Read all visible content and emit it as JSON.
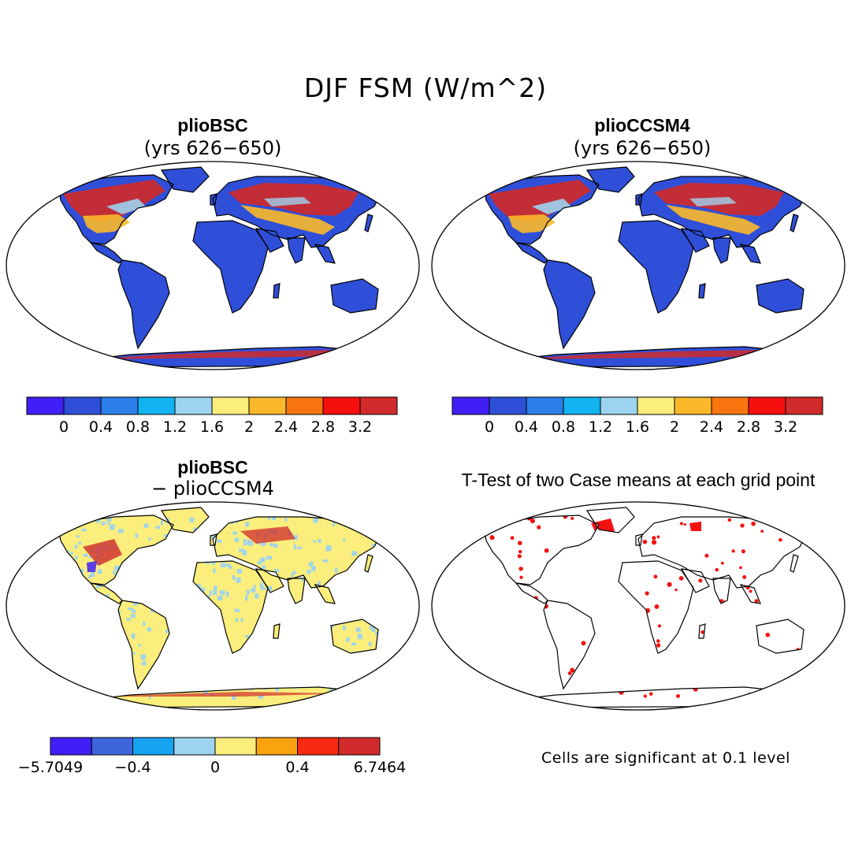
{
  "figure": {
    "title": "DJF FSM (W/m^2)",
    "significance_note": "Cells are significant at 0.1 level"
  },
  "panels": [
    {
      "id": "pliobsc",
      "title": "plioBSC",
      "subtitle": "(yrs 626−650)"
    },
    {
      "id": "pliocssm4",
      "title": "plioCCSM4",
      "subtitle": "(yrs 626−650)"
    },
    {
      "id": "difference",
      "title": "plioBSC",
      "subtitle": "− plioCCSM4"
    },
    {
      "id": "ttest",
      "title": "T-Test of two Case means at each grid point",
      "subtitle": ""
    }
  ],
  "colorbars": {
    "absolute": {
      "colors": [
        "#3f1ff5",
        "#2f4fd8",
        "#2a7fe8",
        "#12b3f0",
        "#9dd3ee",
        "#fbee7c",
        "#fbb82a",
        "#f87510",
        "#f50f0f",
        "#d02a2a"
      ],
      "tick_labels": [
        "0",
        "0.4",
        "0.8",
        "1.2",
        "1.6",
        "2",
        "2.4",
        "2.8",
        "3.2"
      ]
    },
    "difference": {
      "colors": [
        "#3f1ff5",
        "#3f65dc",
        "#16a3f0",
        "#9dd3ee",
        "#fbee7c",
        "#fba30f",
        "#f52a10",
        "#d02a2a"
      ],
      "tick_labels": [
        "−5.7049",
        "−0.4",
        "0",
        "0.4",
        "6.7464"
      ]
    }
  },
  "legend_labels": {
    "bar1": [
      "0",
      "0.4",
      "0.8",
      "1.2",
      "1.6",
      "2",
      "2.4",
      "2.8",
      "3.2"
    ],
    "bar2": [
      "0",
      "0.4",
      "0.8",
      "1.2",
      "1.6",
      "2",
      "2.4",
      "2.8",
      "3.2"
    ]
  },
  "colors": {
    "land_base": "#2f4fd8",
    "snow_high": "#d02a2a",
    "snow_mid": "#fbb82a",
    "diff_base": "#fbee7c",
    "diff_neg": "#9dd3ee",
    "sig_dot": "#f51010",
    "coast": "#000000"
  }
}
